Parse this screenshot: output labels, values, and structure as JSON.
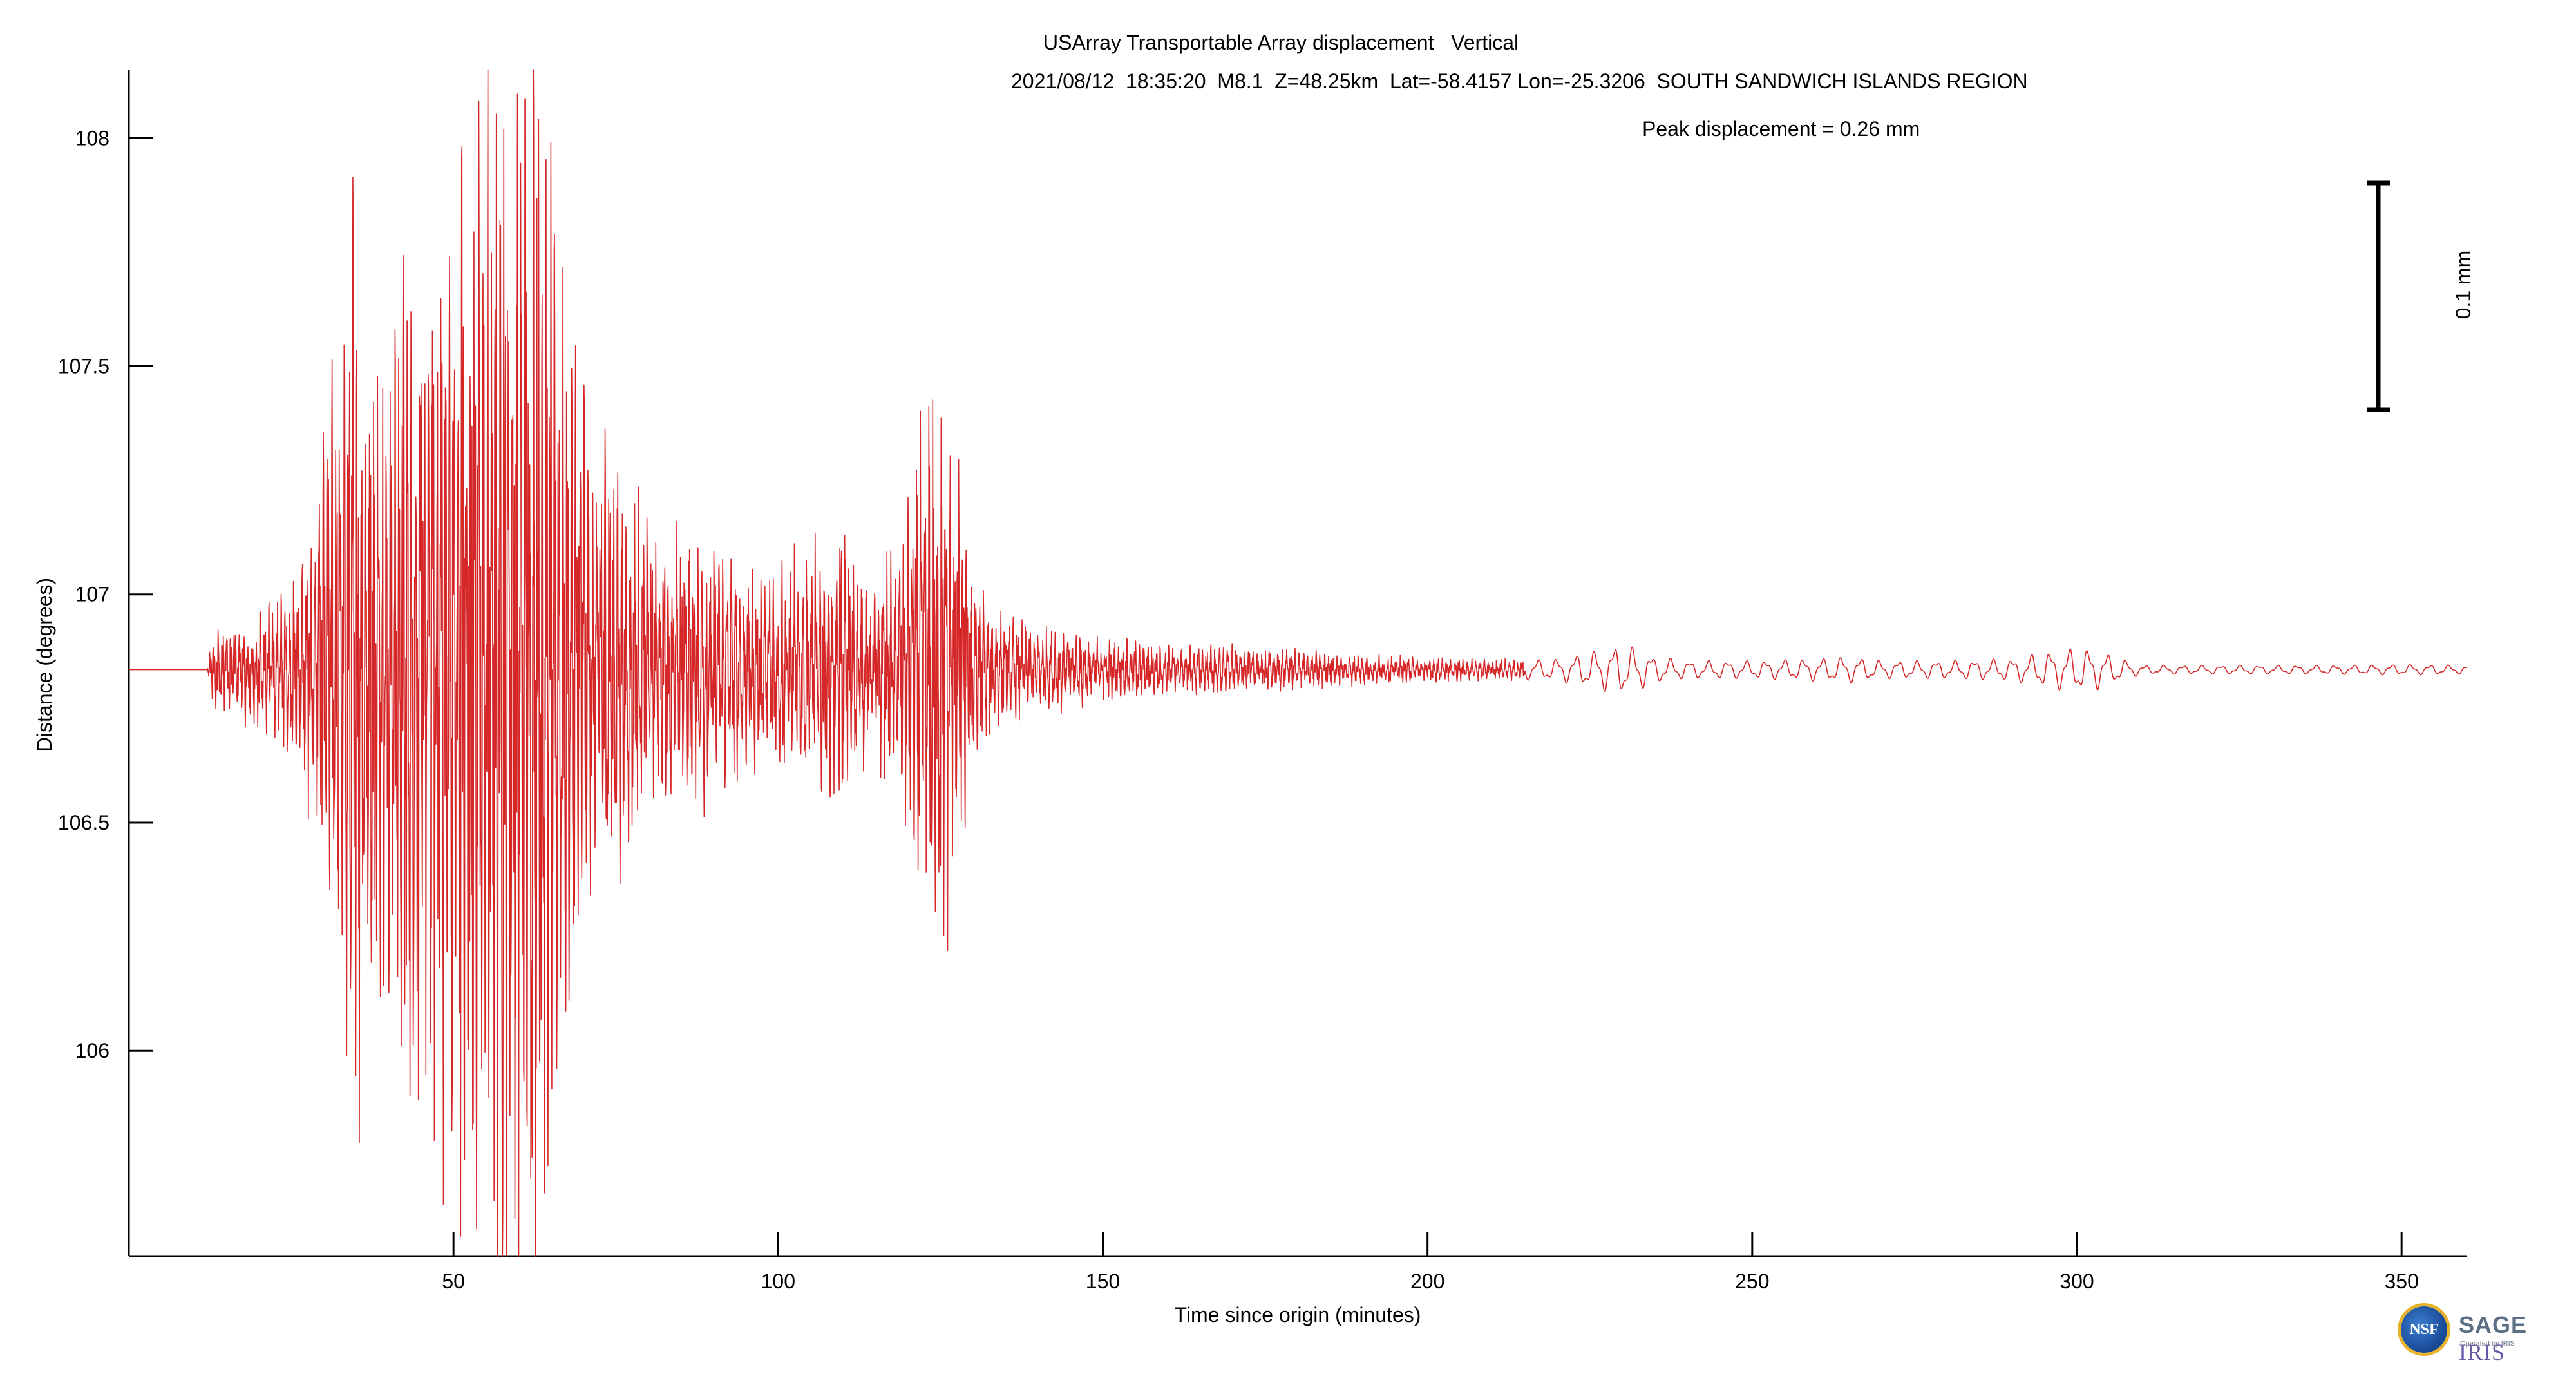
{
  "chart_data": {
    "type": "line",
    "title": "USArray Transportable Array displacement   Vertical",
    "subtitle": "2021/08/12  18:35:20  M8.1  Z=48.25km  Lat=-58.4157 Lon=-25.3206  SOUTH SANDWICH ISLANDS REGION",
    "annotation": "Peak displacement = 0.26 mm",
    "scale_bar_label": "0.1 mm",
    "xlabel": "Time since origin (minutes)",
    "ylabel": "Distance (degrees)",
    "xlim": [
      0,
      360
    ],
    "ylim": [
      105.55,
      108.15
    ],
    "xticks": [
      50,
      100,
      150,
      200,
      250,
      300,
      350
    ],
    "yticks": [
      106,
      106.5,
      107,
      107.5,
      108
    ],
    "ytick_labels": [
      "106",
      "106.5",
      "107",
      "107.5",
      "108"
    ],
    "grid": false,
    "trace_color": "#d62728",
    "trace_baseline": 106.835,
    "envelope": {
      "time_min": [
        0,
        12,
        13,
        20,
        25,
        28,
        30,
        33,
        35,
        36,
        38,
        42,
        45,
        48,
        51,
        53,
        55,
        58,
        60,
        62,
        63,
        64,
        66,
        68,
        72,
        76,
        80,
        85,
        90,
        95,
        100,
        105,
        110,
        112,
        115,
        118,
        120,
        122,
        124,
        126,
        128,
        130,
        133,
        136,
        140,
        145,
        150,
        155,
        160,
        170,
        180,
        190,
        200,
        210,
        220,
        225,
        229,
        232,
        235,
        240,
        250,
        260,
        265,
        270,
        280,
        290,
        295,
        300,
        303,
        306,
        310,
        320,
        340,
        350,
        360
      ],
      "amplitude_deg": [
        0,
        0,
        0.08,
        0.12,
        0.16,
        0.3,
        0.5,
        0.75,
        1.05,
        0.9,
        0.65,
        0.85,
        0.95,
        1.05,
        1.2,
        1.25,
        1.25,
        1.35,
        1.3,
        1.4,
        1.3,
        1.2,
        0.9,
        0.7,
        0.55,
        0.4,
        0.32,
        0.28,
        0.28,
        0.2,
        0.22,
        0.26,
        0.32,
        0.22,
        0.2,
        0.26,
        0.35,
        0.5,
        0.6,
        0.55,
        0.4,
        0.22,
        0.12,
        0.1,
        0.09,
        0.08,
        0.07,
        0.06,
        0.05,
        0.05,
        0.04,
        0.03,
        0.025,
        0.02,
        0.025,
        0.04,
        0.055,
        0.05,
        0.03,
        0.02,
        0.02,
        0.025,
        0.03,
        0.02,
        0.02,
        0.025,
        0.04,
        0.05,
        0.045,
        0.03,
        0.01,
        0.01,
        0.01,
        0.012,
        0.01
      ]
    }
  },
  "logo": {
    "nsf_text": "NSF",
    "sage_text": "SAGE",
    "iris_text": "IRIS",
    "operated_text": "Operated by IRIS"
  }
}
